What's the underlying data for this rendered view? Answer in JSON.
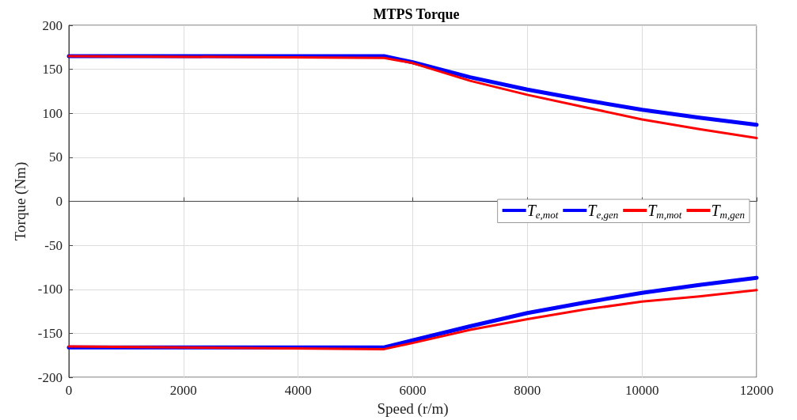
{
  "chart_data": {
    "type": "line",
    "title": "MTPS Torque",
    "xlabel": "Speed (r/m)",
    "ylabel": "Torque (Nm)",
    "xlim": [
      0,
      12000
    ],
    "xticks": [
      0,
      2000,
      4000,
      6000,
      8000,
      10000,
      12000
    ],
    "ylim": [
      -200,
      200
    ],
    "yticks": [
      -200,
      -150,
      -100,
      -50,
      0,
      50,
      100,
      150,
      200
    ],
    "grid": true,
    "legend": "right",
    "marker": "none",
    "line_style": "solid",
    "series": [
      {
        "name": "T$_{e,mot}$",
        "color": "#0000ff",
        "x": [
          0,
          5500,
          6000,
          7000,
          8000,
          9000,
          10000,
          11000,
          12000
        ],
        "values": [
          165,
          165,
          158,
          141,
          127,
          115,
          104,
          95,
          87
        ]
      },
      {
        "name": "T$_{e,gen}$",
        "color": "#0000ff",
        "x": [
          0,
          5500,
          6000,
          7000,
          8000,
          9000,
          10000,
          11000,
          12000
        ],
        "values": [
          -166,
          -166,
          -158,
          -142,
          -127,
          -115,
          -104,
          -95,
          -87
        ]
      },
      {
        "name": "T$_{m,mot}$",
        "color": "#ff0000",
        "x": [
          0,
          5500,
          6000,
          7000,
          8000,
          9000,
          10000,
          11000,
          12000
        ],
        "values": [
          165,
          163,
          157,
          137,
          121,
          107,
          93,
          82,
          72
        ]
      },
      {
        "name": "T$_{m,gen}$",
        "color": "#ff0000",
        "x": [
          0,
          5500,
          6000,
          7000,
          8000,
          9000,
          10000,
          11000,
          12000
        ],
        "values": [
          -165,
          -168,
          -161,
          -146,
          -134,
          -123,
          -114,
          -108,
          -101
        ]
      }
    ]
  }
}
